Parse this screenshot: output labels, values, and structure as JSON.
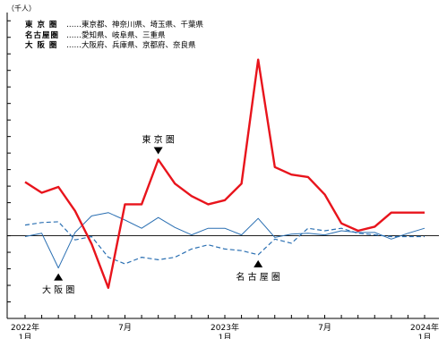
{
  "chart_data": {
    "type": "line",
    "unit_label": "（千人）",
    "x": [
      "2022-01",
      "2022-02",
      "2022-03",
      "2022-04",
      "2022-05",
      "2022-06",
      "2022-07",
      "2022-08",
      "2022-09",
      "2022-10",
      "2022-11",
      "2022-12",
      "2023-01",
      "2023-02",
      "2023-03",
      "2023-04",
      "2023-05",
      "2023-06",
      "2023-07",
      "2023-08",
      "2023-09",
      "2023-10",
      "2023-11",
      "2023-12",
      "2024-01"
    ],
    "x_tick_labels": [
      {
        "index": 0,
        "label": "2022年",
        "sub": "1月"
      },
      {
        "index": 6,
        "label": "7月",
        "sub": ""
      },
      {
        "index": 12,
        "label": "2023年",
        "sub": "1月"
      },
      {
        "index": 18,
        "label": "7月",
        "sub": ""
      },
      {
        "index": 24,
        "label": "2024年",
        "sub": "1月"
      }
    ],
    "ylim": [
      -10,
      27
    ],
    "ytick_step": 2,
    "y_show_labels": false,
    "zero_line": true,
    "series": [
      {
        "name": "東京圏",
        "color": "#e8141c",
        "style": "solid",
        "width": 2.4,
        "values": [
          6.5,
          5.2,
          5.9,
          3.0,
          -1.0,
          -6.3,
          3.8,
          3.8,
          9.2,
          6.3,
          4.8,
          3.8,
          4.3,
          6.3,
          21.3,
          8.3,
          7.4,
          7.1,
          5.0,
          1.5,
          0.6,
          1.1,
          2.8,
          2.8,
          2.8
        ]
      },
      {
        "name": "名古屋圏",
        "color": "#2a6fb2",
        "style": "dashed",
        "width": 1.2,
        "values": [
          1.3,
          1.6,
          1.7,
          -0.5,
          -0.1,
          -2.6,
          -3.4,
          -2.6,
          -2.9,
          -2.6,
          -1.6,
          -1.1,
          -1.6,
          -1.8,
          -2.3,
          -0.4,
          -0.9,
          0.9,
          0.6,
          0.9,
          0.3,
          0.1,
          -0.1,
          -0.1,
          -0.1
        ]
      },
      {
        "name": "大阪圏",
        "color": "#2a6fb2",
        "style": "solid",
        "width": 1.0,
        "values": [
          -0.1,
          0.3,
          -3.9,
          0.4,
          2.4,
          2.8,
          1.9,
          0.9,
          2.2,
          1.0,
          0.1,
          0.9,
          0.9,
          0.1,
          2.1,
          -0.2,
          0.2,
          0.3,
          0.1,
          0.6,
          0.4,
          0.4,
          -0.4,
          0.3,
          0.9
        ]
      }
    ],
    "legend": [
      {
        "name": "東 京 圏",
        "desc": "……東京都、神奈川県、埼玉県、千葉県"
      },
      {
        "name": "名古屋圏",
        "desc": "……愛知県、岐阜県、三重県"
      },
      {
        "name": "大 阪 圏",
        "desc": "……大阪府、兵庫県、京都府、奈良県"
      }
    ],
    "annotations": [
      {
        "text": "東 京 圏",
        "series": 0,
        "index": 8,
        "side": "above"
      },
      {
        "text": "大 阪 圏",
        "series": 2,
        "index": 2,
        "side": "below"
      },
      {
        "text": "名 古 屋 圏",
        "series": 1,
        "index": 14,
        "side": "below"
      }
    ]
  }
}
